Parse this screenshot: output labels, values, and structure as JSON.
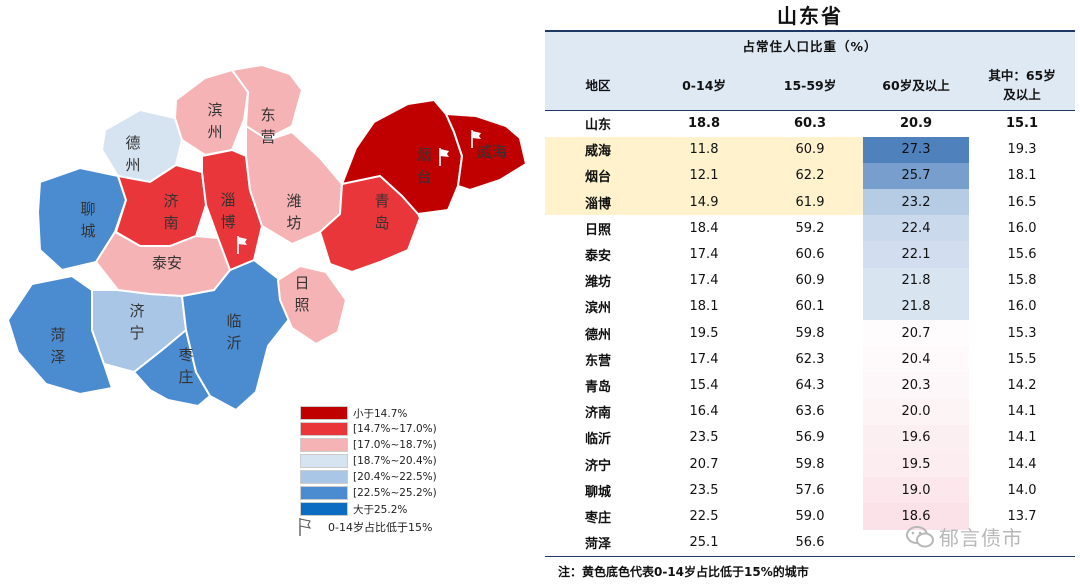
{
  "chart_data": [
    {
      "type": "map",
      "regions": [
        {
          "name": "菏泽",
          "share_0_14": 25.1
        },
        {
          "name": "枣庄",
          "share_0_14": 22.5
        },
        {
          "name": "聊城",
          "share_0_14": 23.5
        },
        {
          "name": "济宁",
          "share_0_14": 20.7
        },
        {
          "name": "临沂",
          "share_0_14": 23.5
        },
        {
          "name": "德州",
          "share_0_14": 19.5
        },
        {
          "name": "济南",
          "share_0_14": 16.4
        },
        {
          "name": "泰安",
          "share_0_14": 17.4
        },
        {
          "name": "滨州",
          "share_0_14": 18.1
        },
        {
          "name": "东营",
          "share_0_14": 17.4
        },
        {
          "name": "淄博",
          "share_0_14": 14.9
        },
        {
          "name": "潍坊",
          "share_0_14": 17.4
        },
        {
          "name": "日照",
          "share_0_14": 18.4
        },
        {
          "name": "青岛",
          "share_0_14": 15.4
        },
        {
          "name": "烟台",
          "share_0_14": 12.1
        },
        {
          "name": "威海",
          "share_0_14": 11.8
        }
      ],
      "legend": [
        {
          "label": "小于14.7%",
          "color": "#c00000"
        },
        {
          "label": "[14.7%~17.0%)",
          "color": "#e8363a"
        },
        {
          "label": "[17.0%~18.7%)",
          "color": "#f6b3b5"
        },
        {
          "label": "[18.7%~20.4%)",
          "color": "#d6e3f1"
        },
        {
          "label": "[20.4%~22.5%)",
          "color": "#a9c6e6"
        },
        {
          "label": "[22.5%~25.2%)",
          "color": "#4b8bd0"
        },
        {
          "label": "大于25.2%",
          "color": "#0b6cc2"
        }
      ],
      "flag_note": "0-14岁占比低于15%"
    },
    {
      "type": "table",
      "title": "山东省",
      "group_header": "占常住人口比重（%）",
      "columns": [
        "地区",
        "0-14岁",
        "15-59岁",
        "60岁及以上",
        "其中：65岁及以上"
      ],
      "rows": [
        [
          "山东",
          "18.8",
          "60.3",
          "20.9",
          "15.1"
        ],
        [
          "威海",
          "11.8",
          "60.9",
          "27.3",
          "19.3"
        ],
        [
          "烟台",
          "12.1",
          "62.2",
          "25.7",
          "18.1"
        ],
        [
          "淄博",
          "14.9",
          "61.9",
          "23.2",
          "16.5"
        ],
        [
          "日照",
          "18.4",
          "59.2",
          "22.4",
          "16.0"
        ],
        [
          "泰安",
          "17.4",
          "60.6",
          "22.1",
          "15.6"
        ],
        [
          "潍坊",
          "17.4",
          "60.9",
          "21.8",
          "15.8"
        ],
        [
          "滨州",
          "18.1",
          "60.1",
          "21.8",
          "16.0"
        ],
        [
          "德州",
          "19.5",
          "59.8",
          "20.7",
          "15.3"
        ],
        [
          "东营",
          "17.4",
          "62.3",
          "20.4",
          "15.5"
        ],
        [
          "青岛",
          "15.4",
          "64.3",
          "20.3",
          "14.2"
        ],
        [
          "济南",
          "16.4",
          "63.6",
          "20.0",
          "14.1"
        ],
        [
          "临沂",
          "23.5",
          "56.9",
          "19.6",
          "14.1"
        ],
        [
          "济宁",
          "20.7",
          "59.8",
          "19.5",
          "14.4"
        ],
        [
          "聊城",
          "23.5",
          "57.6",
          "19.0",
          "14.0"
        ],
        [
          "枣庄",
          "22.5",
          "59.0",
          "18.6",
          "13.7"
        ],
        [
          "菏泽",
          "25.1",
          "56.6",
          "",
          ""
        ]
      ],
      "highlighted_rows": [
        "威海",
        "烟台",
        "淄博"
      ],
      "highlight_color": "#fff2cc"
    }
  ],
  "footnote": "注：黄色底色代表0-14岁占比低于15%的城市",
  "watermark": "郁言债市"
}
